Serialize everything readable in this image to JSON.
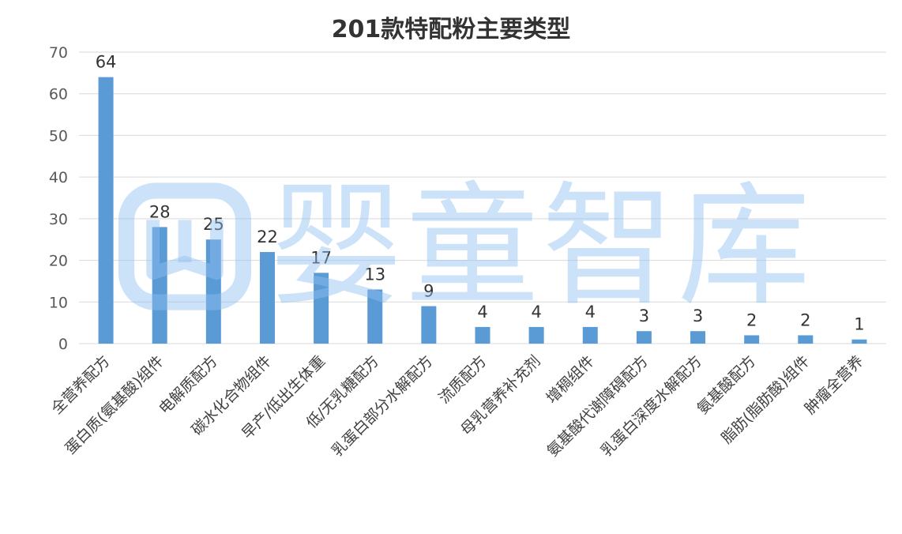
{
  "watermark": {
    "text": "婴童智库",
    "icon": "open-book-logo-icon",
    "color": "#8fbff0"
  },
  "chart_data": {
    "type": "bar",
    "title": "201款特配粉主要类型",
    "xlabel": "",
    "ylabel": "",
    "ylim": [
      0,
      70
    ],
    "yticks": [
      0,
      10,
      20,
      30,
      40,
      50,
      60,
      70
    ],
    "grid": true,
    "legend": "none",
    "bar_color": "#5b9bd5",
    "categories": [
      "全营养配方",
      "蛋白质(氨基酸)组件",
      "电解质配方",
      "碳水化合物组件",
      "早产/低出生体重",
      "低/无乳糖配方",
      "乳蛋白部分水解配方",
      "流质配方",
      "母乳营养补充剂",
      "增稠组件",
      "氨基酸代谢障碍配方",
      "乳蛋白深度水解配方",
      "氨基酸配方",
      "脂肪(脂肪酸)组件",
      "肿瘤全营养"
    ],
    "values": [
      64,
      28,
      25,
      22,
      17,
      13,
      9,
      4,
      4,
      4,
      3,
      3,
      2,
      2,
      1
    ]
  }
}
